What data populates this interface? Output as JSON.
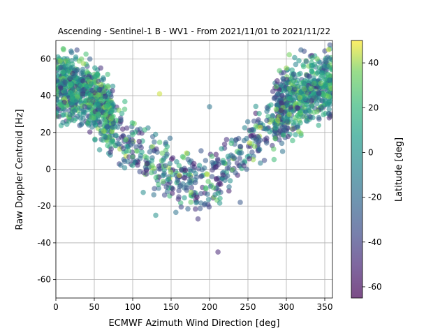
{
  "chart_data": {
    "type": "scatter",
    "title": "Ascending - Sentinel-1 B - WV1 - From 2021/11/01 to 2021/11/22",
    "xlabel": "ECMWF Azimuth Wind Direction [deg]",
    "ylabel": "Raw Doppler Centroid [Hz]",
    "xlim": [
      0,
      360
    ],
    "ylim": [
      -70,
      70
    ],
    "xticks": [
      "0",
      "50",
      "100",
      "150",
      "200",
      "250",
      "300",
      "350"
    ],
    "yticks": [
      "-60",
      "-40",
      "-20",
      "0",
      "20",
      "40",
      "60"
    ],
    "grid": true,
    "colorbar": {
      "label": "Latitude [deg]",
      "range": [
        -65,
        50
      ],
      "ticks": [
        "-60",
        "-40",
        "-20",
        "0",
        "20",
        "40"
      ],
      "colormap": "viridis"
    },
    "point_style": {
      "alpha": 0.55
    },
    "trend": {
      "description": "V-shaped relation: ~45 Hz near 0/360 deg, ~ -8 Hz near 190 deg",
      "x": [
        0,
        30,
        60,
        90,
        120,
        150,
        180,
        190,
        210,
        240,
        270,
        300,
        330,
        360
      ],
      "y": [
        45,
        44,
        34,
        15,
        5,
        -2,
        -7,
        -8,
        -5,
        8,
        22,
        35,
        44,
        46
      ]
    },
    "sample_points": [
      {
        "x": 10,
        "y": 65,
        "lat": 30
      },
      {
        "x": 20,
        "y": 55,
        "lat": -10
      },
      {
        "x": 40,
        "y": 45,
        "lat": 5
      },
      {
        "x": 55,
        "y": 30,
        "lat": 20
      },
      {
        "x": 75,
        "y": 25,
        "lat": -30
      },
      {
        "x": 95,
        "y": 10,
        "lat": 25
      },
      {
        "x": 130,
        "y": -25,
        "lat": 0
      },
      {
        "x": 135,
        "y": 41,
        "lat": 45
      },
      {
        "x": 160,
        "y": -15,
        "lat": -40
      },
      {
        "x": 185,
        "y": -27,
        "lat": -45
      },
      {
        "x": 200,
        "y": 34,
        "lat": -15
      },
      {
        "x": 211,
        "y": -45,
        "lat": -50
      },
      {
        "x": 240,
        "y": -18,
        "lat": -30
      },
      {
        "x": 280,
        "y": 35,
        "lat": 10
      },
      {
        "x": 300,
        "y": 55,
        "lat": 40
      },
      {
        "x": 340,
        "y": 60,
        "lat": 35
      },
      {
        "x": 355,
        "y": 65,
        "lat": 45
      }
    ]
  }
}
